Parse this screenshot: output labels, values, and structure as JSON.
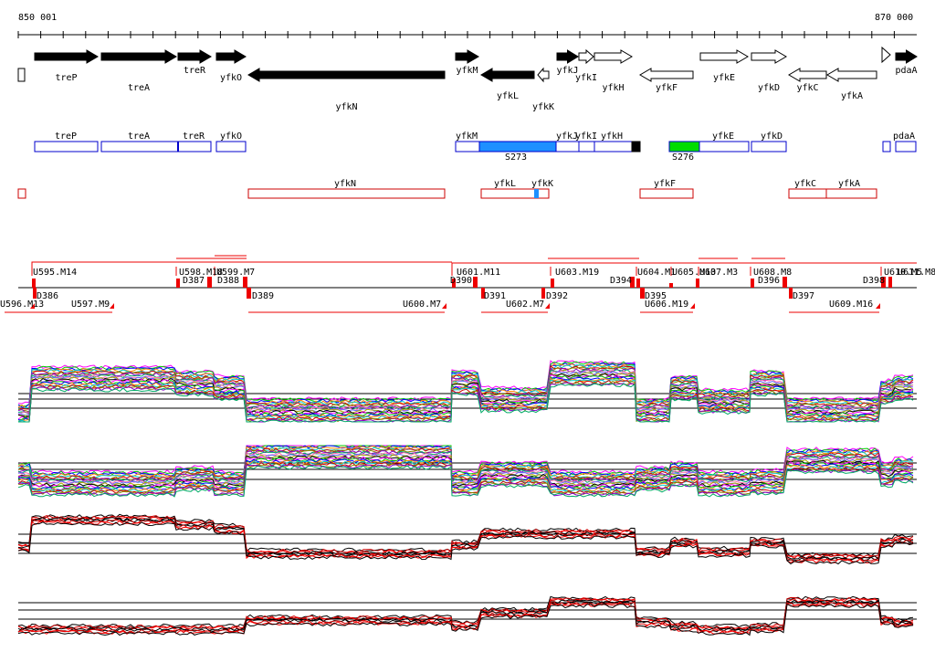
{
  "ruler": {
    "start_label": "850 001",
    "end_label": "870 000"
  },
  "genes": [
    {
      "name": "treP",
      "strand": "+",
      "x1": 38,
      "x2": 107,
      "filled": true
    },
    {
      "name": "treA",
      "strand": "+",
      "x1": 111,
      "x2": 193,
      "filled": true
    },
    {
      "name": "treR",
      "strand": "+",
      "x1": 195,
      "x2": 231,
      "filled": true
    },
    {
      "name": "yfkO",
      "strand": "+",
      "x1": 237,
      "x2": 269,
      "filled": true
    },
    {
      "name": "yfkN",
      "strand": "-",
      "x1": 272,
      "x2": 487,
      "filled": true
    },
    {
      "name": "yfkM",
      "strand": "+",
      "x1": 499,
      "x2": 524,
      "filled": true
    },
    {
      "name": "yfkL",
      "strand": "-",
      "x1": 527,
      "x2": 585,
      "filled": true
    },
    {
      "name": "yfkK",
      "strand": "-",
      "x1": 589,
      "x2": 601,
      "filled": false
    },
    {
      "name": "yfkJ",
      "strand": "+",
      "x1": 610,
      "x2": 633,
      "filled": true
    },
    {
      "name": "yfkI",
      "strand": "+",
      "x1": 634,
      "x2": 650,
      "filled": false
    },
    {
      "name": "yfkH",
      "strand": "+",
      "x1": 651,
      "x2": 692,
      "filled": false
    },
    {
      "name": "yfkF",
      "strand": "-",
      "x1": 701,
      "x2": 759,
      "filled": false
    },
    {
      "name": "yfkE",
      "strand": "+",
      "x1": 767,
      "x2": 819,
      "filled": false
    },
    {
      "name": "yfkD",
      "strand": "+",
      "x1": 823,
      "x2": 861,
      "filled": false
    },
    {
      "name": "yfkC",
      "strand": "-",
      "x1": 864,
      "x2": 905,
      "filled": false
    },
    {
      "name": "yfkA",
      "strand": "-",
      "x1": 906,
      "x2": 960,
      "filled": false
    },
    {
      "name": "pdaA",
      "strand": "+",
      "x1": 981,
      "x2": 1004,
      "filled": true
    }
  ],
  "gene_label_yrow": {
    "treP": 88,
    "treA": 99,
    "treR": 80,
    "yfkO": 88,
    "yfkN": 120,
    "yfkM": 80,
    "yfkL": 108,
    "yfkK": 120,
    "yfkJ": 80,
    "yfkI": 88,
    "yfkH": 99,
    "yfkF": 99,
    "yfkE": 88,
    "yfkD": 99,
    "yfkC": 99,
    "yfkA": 108,
    "pdaA": 80
  },
  "plus_boxes": [
    {
      "label": "treP"
    },
    {
      "label": "treA"
    },
    {
      "label": "treR"
    },
    {
      "label": "yfkO"
    },
    {
      "label": "yfkM"
    },
    {
      "label": "S273"
    },
    {
      "label": "yfkJ"
    },
    {
      "label": "yfkI"
    },
    {
      "label": "yfkH"
    },
    {
      "label": "S276"
    },
    {
      "label": "yfkE"
    },
    {
      "label": "yfkD"
    },
    {
      "label": "pdaA"
    }
  ],
  "minus_boxes": [
    {
      "label": "yfkN"
    },
    {
      "label": "yfkL"
    },
    {
      "label": "yfkK"
    },
    {
      "label": "yfkF"
    },
    {
      "label": "yfkC"
    },
    {
      "label": "yfkA"
    }
  ],
  "upper_markers": [
    {
      "label": "U595.M14"
    },
    {
      "label": "U598.M18"
    },
    {
      "label": "U599.M7"
    },
    {
      "label": "D387"
    },
    {
      "label": "D388"
    },
    {
      "label": "U601.M11"
    },
    {
      "label": "U603.M19"
    },
    {
      "label": "D390"
    },
    {
      "label": "U604.M1"
    },
    {
      "label": "U605.M13"
    },
    {
      "label": "U607.M3"
    },
    {
      "label": "U608.M8"
    },
    {
      "label": "D394"
    },
    {
      "label": "D396"
    },
    {
      "label": "D398"
    },
    {
      "label": "U610.M5"
    },
    {
      "label": "U611.M8"
    }
  ],
  "lower_markers": [
    {
      "label": "U596.M13"
    },
    {
      "label": "D386"
    },
    {
      "label": "U597.M9"
    },
    {
      "label": "D389"
    },
    {
      "label": "U600.M7"
    },
    {
      "label": "D391"
    },
    {
      "label": "U602.M7"
    },
    {
      "label": "D392"
    },
    {
      "label": "D395"
    },
    {
      "label": "U606.M19"
    },
    {
      "label": "D397"
    },
    {
      "label": "U609.M16"
    }
  ],
  "colors": {
    "plus_box": "#0000cc",
    "minus_box": "#cc0000",
    "blue_fill": "#1e90ff",
    "green_fill": "#00dd00",
    "marker": "#ee0000"
  }
}
